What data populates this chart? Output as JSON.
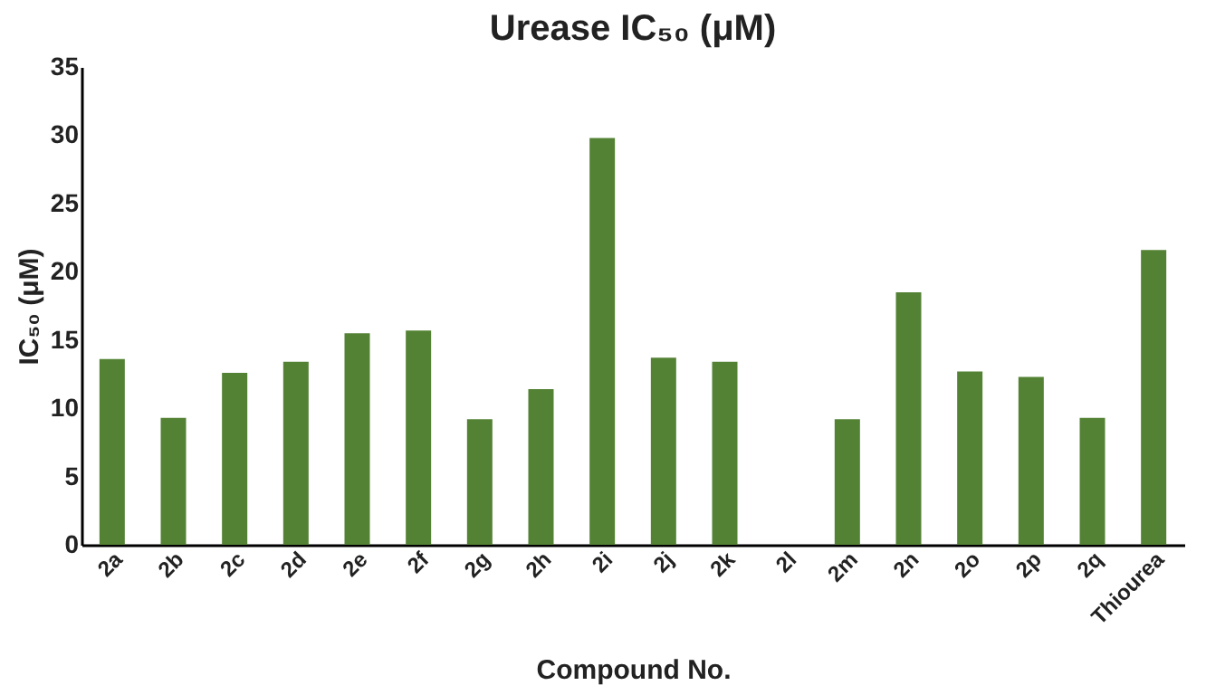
{
  "chart_data": {
    "type": "bar",
    "title": "Urease IC₅₀ (μM)",
    "xlabel": "Compound No.",
    "ylabel": "IC₅₀ (μM)",
    "categories": [
      "2a",
      "2b",
      "2c",
      "2d",
      "2e",
      "2f",
      "2g",
      "2h",
      "2i",
      "2j",
      "2k",
      "2l",
      "2m",
      "2n",
      "2o",
      "2p",
      "2q",
      "Thiourea"
    ],
    "series": [
      {
        "color": "#548235",
        "values": [
          13.6,
          9.3,
          12.6,
          13.4,
          15.5,
          15.7,
          9.2,
          11.4,
          29.8,
          13.7,
          13.4,
          null,
          9.2,
          18.5,
          12.7,
          12.3,
          9.3,
          21.6
        ]
      }
    ],
    "ylim": [
      0,
      35
    ],
    "yticks": [
      0,
      5,
      10,
      15,
      20,
      25,
      30,
      35
    ],
    "grid": false,
    "legend": false
  }
}
